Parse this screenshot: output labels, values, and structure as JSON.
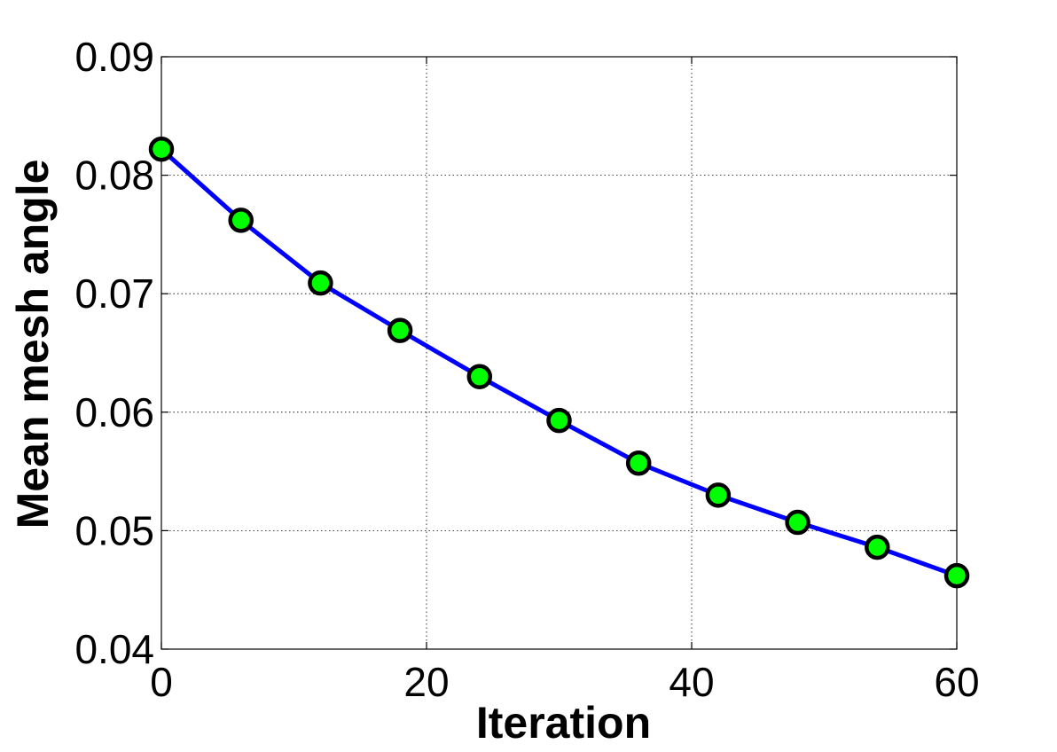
{
  "chart_data": {
    "type": "line",
    "title": "",
    "xlabel": "Iteration",
    "ylabel": "Mean mesh angle",
    "xlim": [
      0,
      60
    ],
    "ylim": [
      0.04,
      0.09
    ],
    "xticks": [
      0,
      20,
      40,
      60
    ],
    "xtick_labels": [
      "0",
      "20",
      "40",
      "60"
    ],
    "yticks": [
      0.04,
      0.05,
      0.06,
      0.07,
      0.08,
      0.09
    ],
    "ytick_labels": [
      "0.04",
      "0.05",
      "0.06",
      "0.07",
      "0.08",
      "0.09"
    ],
    "grid": true,
    "grid_style": "dotted",
    "line_color": "#0000ff",
    "marker_face_color": "#00ff00",
    "marker_edge_color": "#000000",
    "series": [
      {
        "x": [
          0,
          6,
          12,
          18,
          24,
          30,
          36,
          42,
          48,
          54,
          60
        ],
        "y": [
          0.0822,
          0.0762,
          0.0709,
          0.0669,
          0.063,
          0.0593,
          0.0557,
          0.053,
          0.0507,
          0.0486,
          0.0462
        ]
      }
    ]
  }
}
